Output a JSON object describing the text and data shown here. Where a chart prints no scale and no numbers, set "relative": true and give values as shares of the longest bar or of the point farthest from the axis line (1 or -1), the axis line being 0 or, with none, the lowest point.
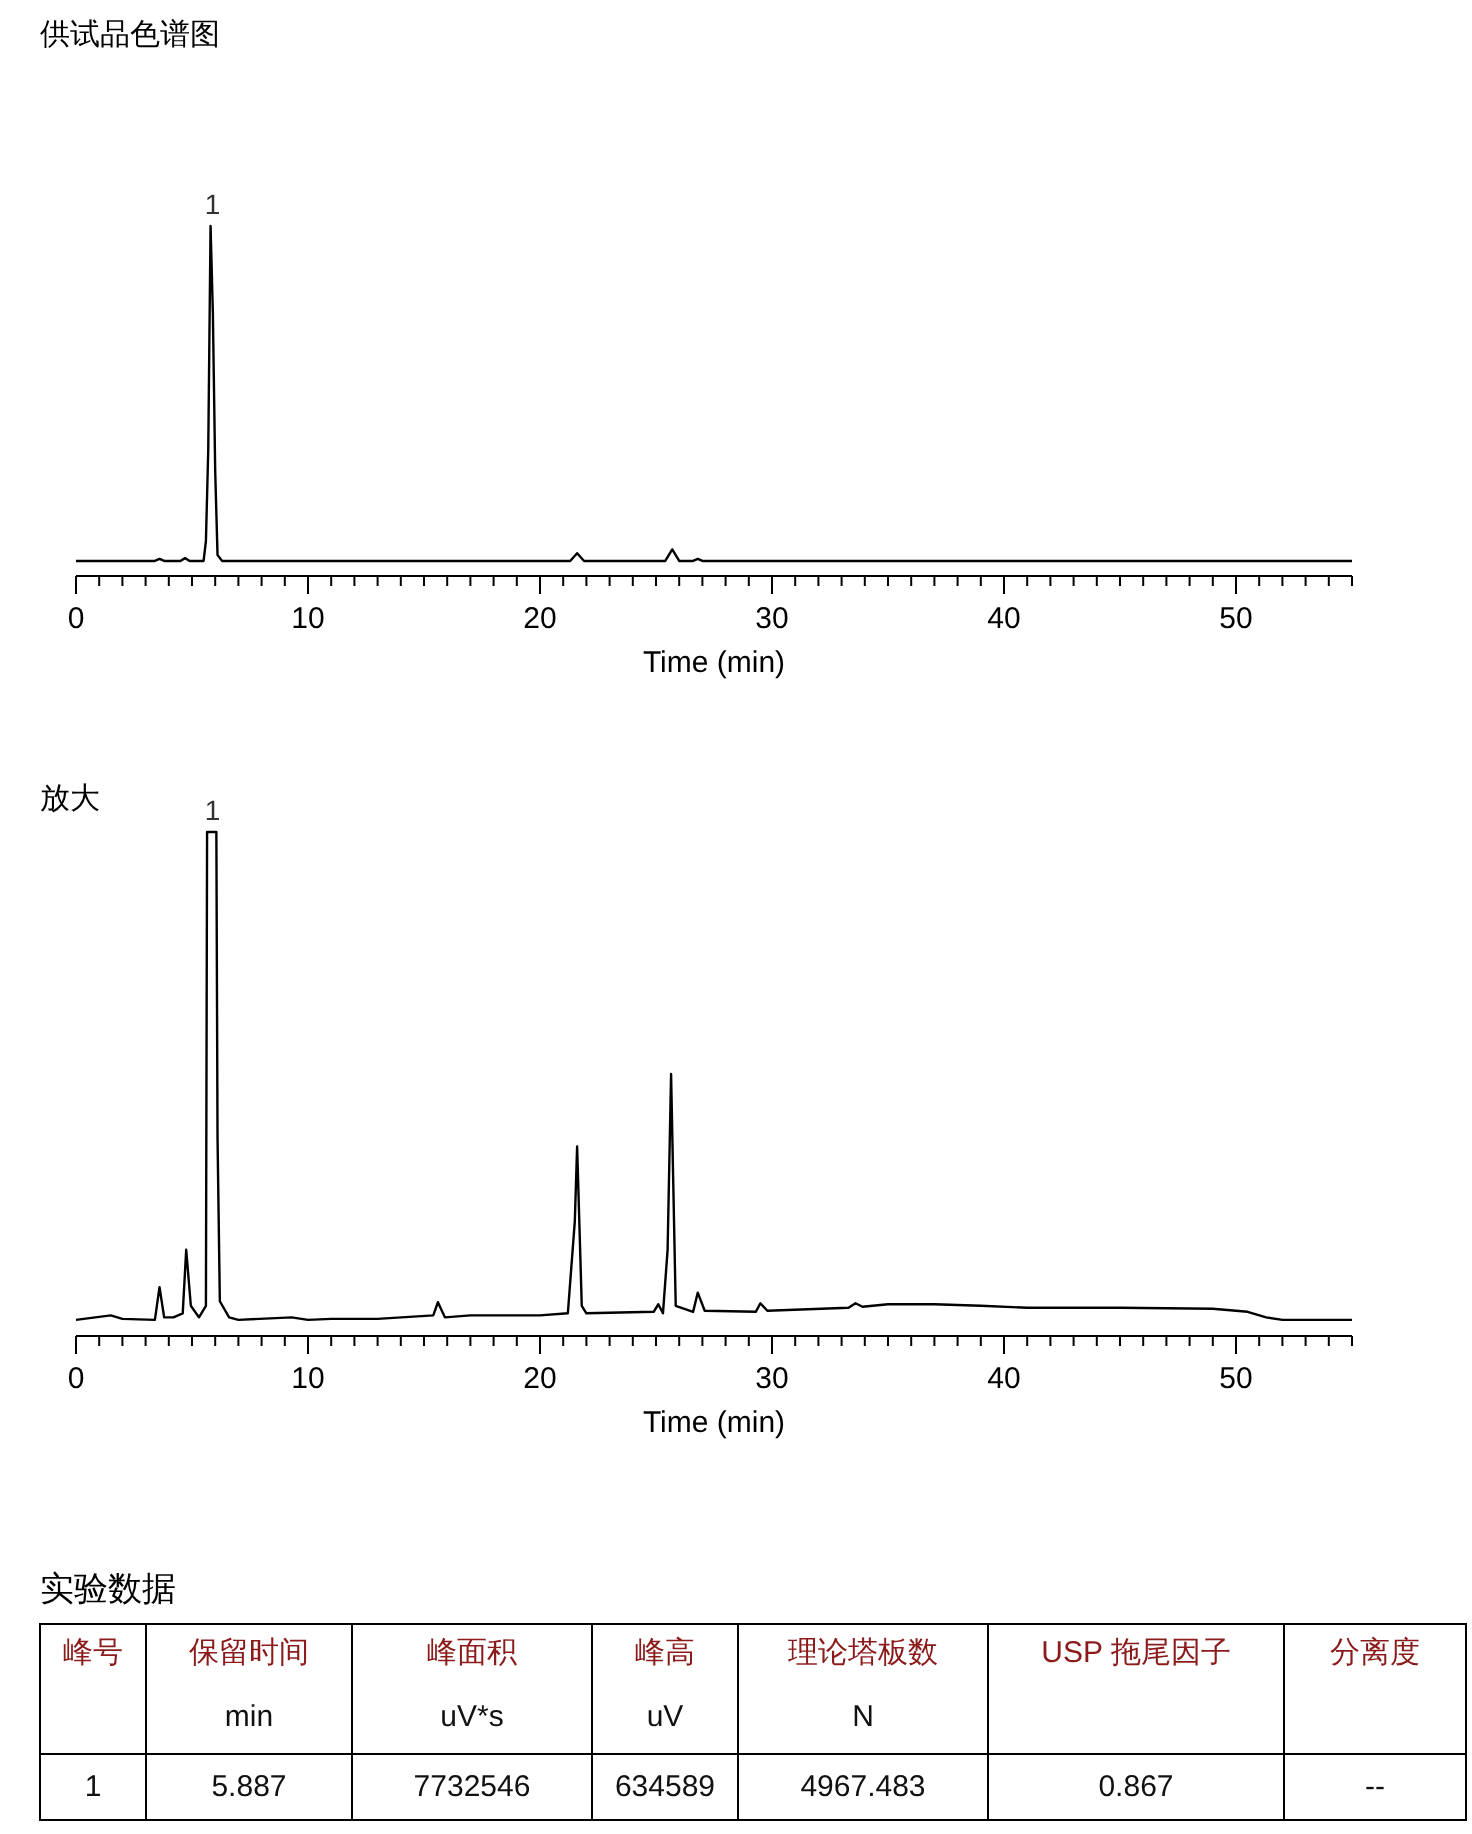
{
  "chart_data": [
    {
      "type": "line",
      "title": "供试品色谱图",
      "xlabel": "Time (min)",
      "relative": true,
      "xlim": [
        0,
        55
      ],
      "xticks": [
        0,
        {
          "value": 1,
          "label": null
        },
        {
          "value": 2,
          "label": null
        },
        {
          "value": 3,
          "label": null
        },
        {
          "value": 4,
          "label": null
        },
        {
          "value": 5,
          "label": null
        },
        {
          "value": 6,
          "label": null
        },
        {
          "value": 7,
          "label": null
        },
        {
          "value": 8,
          "label": null
        },
        {
          "value": 9,
          "label": null
        },
        10,
        {
          "value": 11,
          "label": null
        },
        {
          "value": 12,
          "label": null
        },
        {
          "value": 13,
          "label": null
        },
        {
          "value": 14,
          "label": null
        },
        {
          "value": 15,
          "label": null
        },
        {
          "value": 16,
          "label": null
        },
        {
          "value": 17,
          "label": null
        },
        {
          "value": 18,
          "label": null
        },
        {
          "value": 19,
          "label": null
        },
        20,
        {
          "value": 21,
          "label": null
        },
        {
          "value": 22,
          "label": null
        },
        {
          "value": 23,
          "label": null
        },
        {
          "value": 24,
          "label": null
        },
        {
          "value": 25,
          "label": null
        },
        {
          "value": 26,
          "label": null
        },
        {
          "value": 27,
          "label": null
        },
        {
          "value": 28,
          "label": null
        },
        {
          "value": 29,
          "label": null
        },
        30,
        {
          "value": 31,
          "label": null
        },
        {
          "value": 32,
          "label": null
        },
        {
          "value": 33,
          "label": null
        },
        {
          "value": 34,
          "label": null
        },
        {
          "value": 35,
          "label": null
        },
        {
          "value": 36,
          "label": null
        },
        {
          "value": 37,
          "label": null
        },
        {
          "value": 38,
          "label": null
        },
        {
          "value": 39,
          "label": null
        },
        40,
        {
          "value": 41,
          "label": null
        },
        {
          "value": 42,
          "label": null
        },
        {
          "value": 43,
          "label": null
        },
        {
          "value": 44,
          "label": null
        },
        {
          "value": 45,
          "label": null
        },
        {
          "value": 46,
          "label": null
        },
        {
          "value": 47,
          "label": null
        },
        {
          "value": 48,
          "label": null
        },
        {
          "value": 49,
          "label": null
        },
        50,
        {
          "value": 51,
          "label": null
        },
        {
          "value": 52,
          "label": null
        },
        {
          "value": 53,
          "label": null
        },
        {
          "value": 54,
          "label": null
        },
        {
          "value": 55,
          "label": null
        }
      ],
      "series": [
        {
          "color": "#000000",
          "x": [
            0,
            3.4,
            3.6,
            3.8,
            4.5,
            4.7,
            4.9,
            5.5,
            5.6,
            5.7,
            5.8,
            5.9,
            6.0,
            6.1,
            6.3,
            21.3,
            21.6,
            21.9,
            25.4,
            25.7,
            26.0,
            26.6,
            26.8,
            27.0,
            55
          ],
          "values": [
            0.043,
            0.043,
            0.049,
            0.043,
            0.043,
            0.051,
            0.043,
            0.043,
            0.1,
            0.36,
            1,
            0.75,
            0.3,
            0.06,
            0.043,
            0.043,
            0.065,
            0.043,
            0.043,
            0.076,
            0.043,
            0.043,
            0.049,
            0.043,
            0.043
          ]
        }
      ],
      "annotations": [
        {
          "text": "1",
          "x": 5.887,
          "y": 1
        }
      ]
    },
    {
      "type": "line",
      "title": "放大",
      "xlabel": "Time (min)",
      "relative": true,
      "xlim": [
        0,
        55
      ],
      "xticks": [
        0,
        {
          "value": 1,
          "label": null
        },
        {
          "value": 2,
          "label": null
        },
        {
          "value": 3,
          "label": null
        },
        {
          "value": 4,
          "label": null
        },
        {
          "value": 5,
          "label": null
        },
        {
          "value": 6,
          "label": null
        },
        {
          "value": 7,
          "label": null
        },
        {
          "value": 8,
          "label": null
        },
        {
          "value": 9,
          "label": null
        },
        10,
        {
          "value": 11,
          "label": null
        },
        {
          "value": 12,
          "label": null
        },
        {
          "value": 13,
          "label": null
        },
        {
          "value": 14,
          "label": null
        },
        {
          "value": 15,
          "label": null
        },
        {
          "value": 16,
          "label": null
        },
        {
          "value": 17,
          "label": null
        },
        {
          "value": 18,
          "label": null
        },
        {
          "value": 19,
          "label": null
        },
        20,
        {
          "value": 21,
          "label": null
        },
        {
          "value": 22,
          "label": null
        },
        {
          "value": 23,
          "label": null
        },
        {
          "value": 24,
          "label": null
        },
        {
          "value": 25,
          "label": null
        },
        {
          "value": 26,
          "label": null
        },
        {
          "value": 27,
          "label": null
        },
        {
          "value": 28,
          "label": null
        },
        {
          "value": 29,
          "label": null
        },
        30,
        {
          "value": 31,
          "label": null
        },
        {
          "value": 32,
          "label": null
        },
        {
          "value": 33,
          "label": null
        },
        {
          "value": 34,
          "label": null
        },
        {
          "value": 35,
          "label": null
        },
        {
          "value": 36,
          "label": null
        },
        {
          "value": 37,
          "label": null
        },
        {
          "value": 38,
          "label": null
        },
        {
          "value": 39,
          "label": null
        },
        40,
        {
          "value": 41,
          "label": null
        },
        {
          "value": 42,
          "label": null
        },
        {
          "value": 43,
          "label": null
        },
        {
          "value": 44,
          "label": null
        },
        {
          "value": 45,
          "label": null
        },
        {
          "value": 46,
          "label": null
        },
        {
          "value": 47,
          "label": null
        },
        {
          "value": 48,
          "label": null
        },
        {
          "value": 49,
          "label": null
        },
        50,
        {
          "value": 51,
          "label": null
        },
        {
          "value": 52,
          "label": null
        },
        {
          "value": 53,
          "label": null
        },
        {
          "value": 54,
          "label": null
        },
        {
          "value": 55,
          "label": null
        }
      ],
      "series": [
        {
          "color": "#000000",
          "x": [
            0,
            1.5,
            2,
            3.4,
            3.6,
            3.8,
            4.2,
            4.6,
            4.75,
            4.95,
            5.3,
            5.6,
            5.65,
            6.05,
            6.1,
            6.2,
            6.6,
            7,
            9.3,
            10,
            11,
            13,
            15.4,
            15.6,
            15.9,
            17,
            20,
            21.2,
            21.5,
            21.6,
            21.8,
            22,
            24.9,
            25.1,
            25.3,
            25.5,
            25.65,
            25.85,
            26.6,
            26.8,
            27.1,
            29.3,
            29.5,
            29.8,
            33.3,
            33.6,
            33.9,
            35,
            37,
            39,
            41,
            45,
            49,
            50.5,
            51.3,
            52,
            55
          ],
          "values": [
            0.032,
            0.041,
            0.034,
            0.032,
            0.097,
            0.037,
            0.037,
            0.045,
            0.171,
            0.06,
            0.037,
            0.06,
            1,
            1,
            0.395,
            0.069,
            0.037,
            0.032,
            0.037,
            0.032,
            0.034,
            0.034,
            0.041,
            0.067,
            0.037,
            0.041,
            0.041,
            0.045,
            0.227,
            0.376,
            0.06,
            0.045,
            0.048,
            0.063,
            0.045,
            0.171,
            0.52,
            0.06,
            0.048,
            0.086,
            0.05,
            0.048,
            0.065,
            0.05,
            0.056,
            0.065,
            0.058,
            0.063,
            0.063,
            0.06,
            0.056,
            0.056,
            0.054,
            0.048,
            0.037,
            0.032,
            0.032
          ]
        }
      ],
      "annotations": [
        {
          "text": "1",
          "x": 5.887,
          "y": 1
        }
      ]
    },
    {
      "type": "other",
      "title": "实验数据",
      "categories": [
        "峰号",
        "保留时间",
        "峰面积",
        "峰高",
        "理论塔板数",
        "USP 拖尾因子",
        "分离度"
      ],
      "cell_labels": [
        [
          null,
          "min",
          "uV*s",
          "uV",
          "N",
          null,
          null
        ],
        [
          "1",
          "5.887",
          "7732546",
          "634589",
          "4967.483",
          "0.867",
          "--"
        ]
      ]
    }
  ]
}
